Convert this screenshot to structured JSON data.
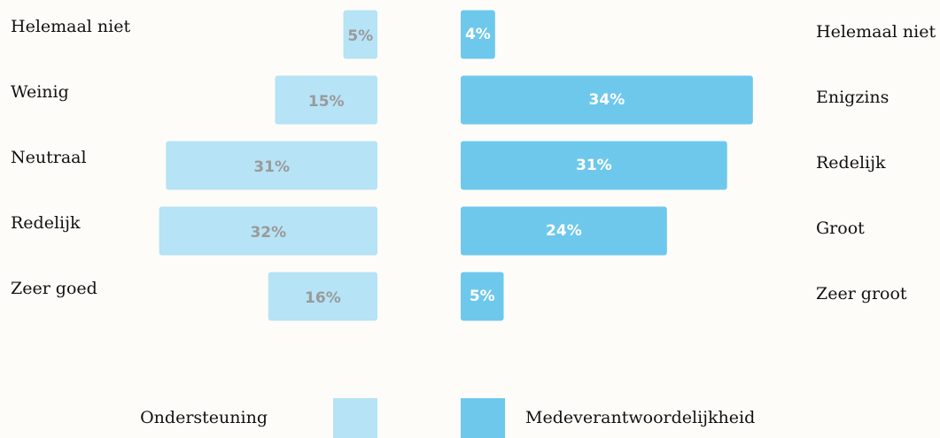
{
  "chart_data": {
    "type": "butterfly",
    "series": [
      {
        "name": "Ondersteuning",
        "color": "#b6e3f5",
        "label_color": "#9a9a9a",
        "categories": [
          "Helemaal niet",
          "Weinig",
          "Neutraal",
          "Redelijk",
          "Zeer goed"
        ],
        "values": [
          5,
          15,
          31,
          32,
          16
        ],
        "value_labels": [
          "5%",
          "15%",
          "31%",
          "32%",
          "16%"
        ]
      },
      {
        "name": "Medeverantwoordelijkheid",
        "color": "#6ec8ec",
        "label_color": "#ffffff",
        "categories": [
          "Helemaal niet",
          "Enigzins",
          "Redelijk",
          "Groot",
          "Zeer groot"
        ],
        "values": [
          4,
          34,
          31,
          24,
          5
        ],
        "value_labels": [
          "4%",
          "34%",
          "31%",
          "24%",
          "5%"
        ]
      }
    ]
  }
}
